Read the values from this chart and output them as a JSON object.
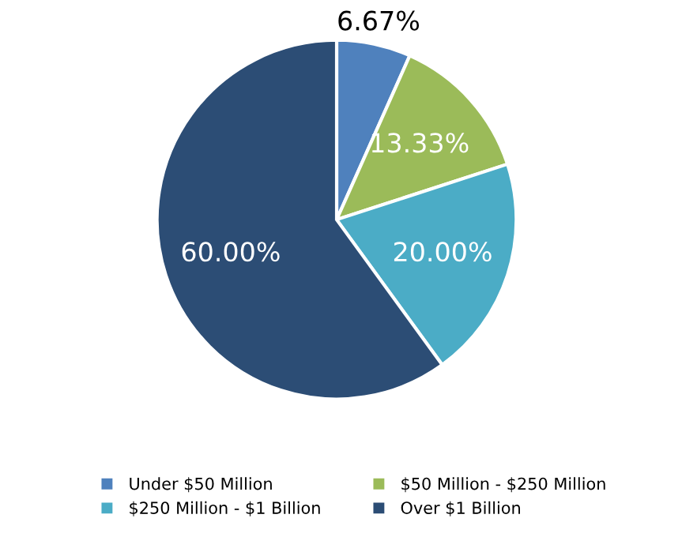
{
  "chart_data": {
    "type": "pie",
    "categories": [
      "Under $50 Million",
      "$50 Million - $250 Million",
      "$250 Million - $1 Billion",
      "Over $1 Billion"
    ],
    "values": [
      6.67,
      13.33,
      20.0,
      60.0
    ],
    "colors": [
      "#4f81bd",
      "#9bbb59",
      "#4bacc6",
      "#2c4d75"
    ],
    "value_labels": [
      "6.67%",
      "13.33%",
      "20.00%",
      "60.00%"
    ],
    "legend": "bottom"
  }
}
